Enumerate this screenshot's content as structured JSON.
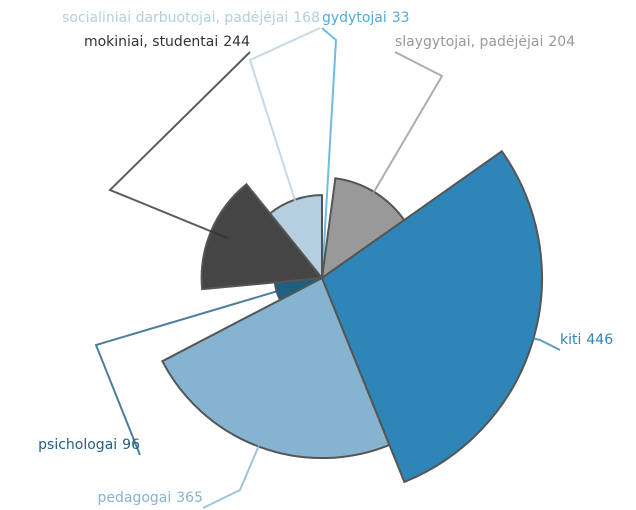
{
  "chart_data": {
    "type": "rose",
    "categories": [
      "gydytojai",
      "slaygytojai, padėjėjai",
      "kiti",
      "pedagogai",
      "psichologai",
      "mokiniai, studentai",
      "socialiniai darbuotojai, padėjėjai"
    ],
    "values": [
      33,
      204,
      446,
      365,
      96,
      244,
      168
    ],
    "colors": [
      "#4fa9dc",
      "#999999",
      "#2e86b8",
      "#86b4d0",
      "#1f5f82",
      "#454545",
      "#b5cfde"
    ],
    "label_colors": [
      "#4fa9dc",
      "#999999",
      "#2e86b8",
      "#86b4d0",
      "#1f5f82",
      "#333333",
      "#b5cfde"
    ]
  }
}
